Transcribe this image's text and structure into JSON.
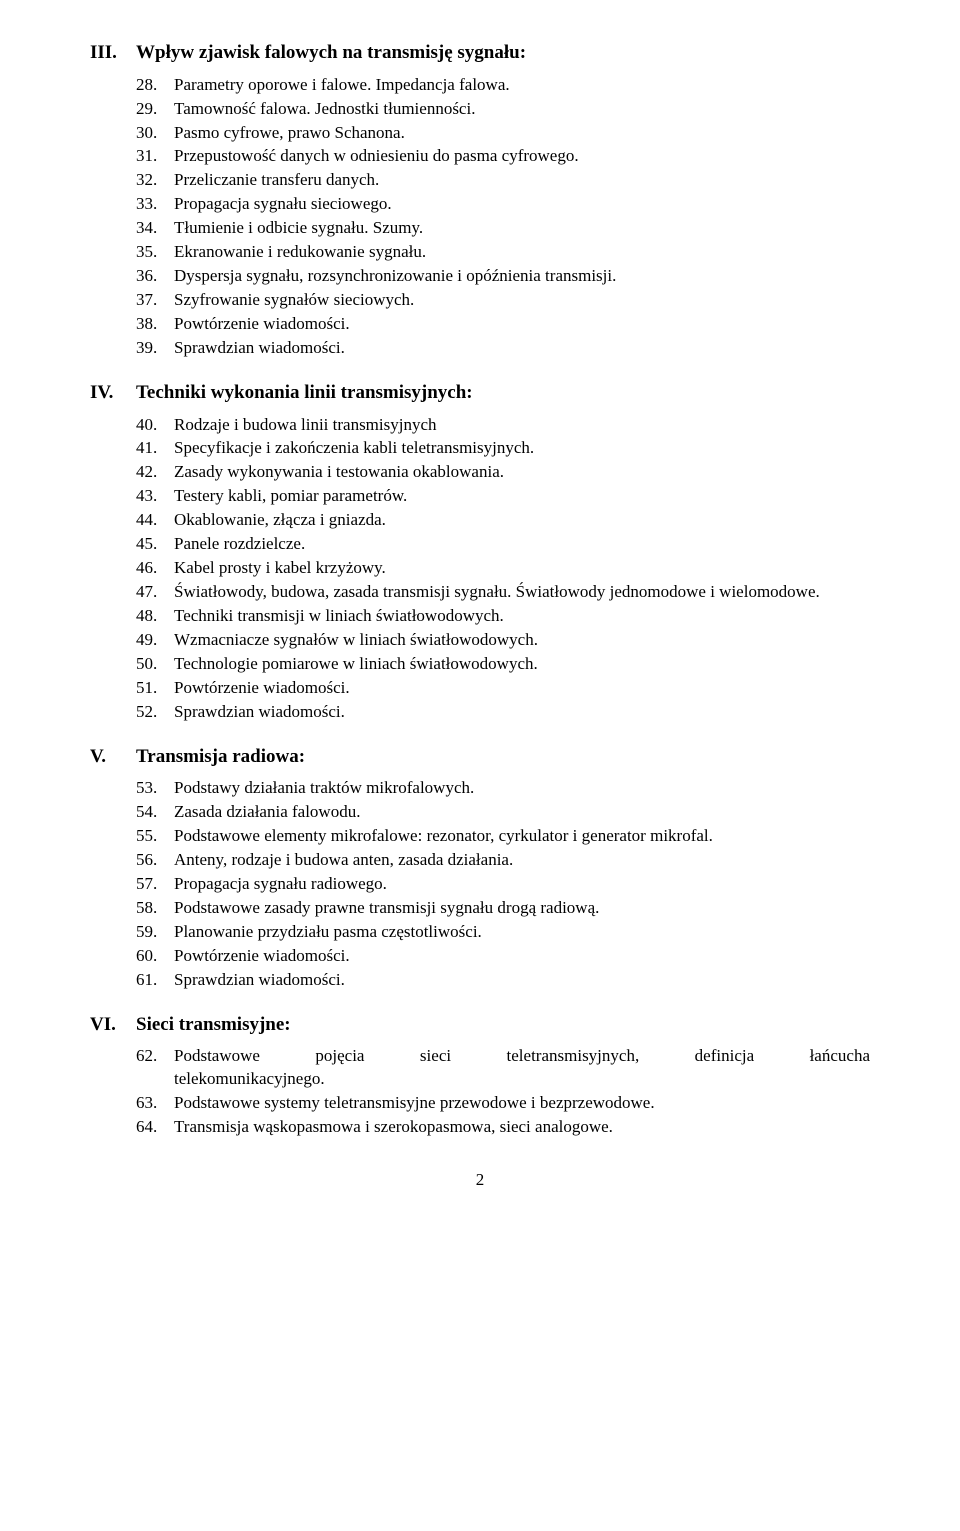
{
  "sections": [
    {
      "num": "III.",
      "title": "Wpływ zjawisk falowych na transmisję sygnału:",
      "items": [
        {
          "n": "28.",
          "t": "Parametry oporowe i falowe. Impedancja falowa."
        },
        {
          "n": "29.",
          "t": "Tamowność falowa. Jednostki tłumienności."
        },
        {
          "n": "30.",
          "t": "Pasmo cyfrowe, prawo Schanona."
        },
        {
          "n": "31.",
          "t": "Przepustowość danych w odniesieniu do pasma cyfrowego."
        },
        {
          "n": "32.",
          "t": "Przeliczanie transferu danych."
        },
        {
          "n": "33.",
          "t": "Propagacja sygnału sieciowego."
        },
        {
          "n": "34.",
          "t": "Tłumienie i odbicie sygnału. Szumy."
        },
        {
          "n": "35.",
          "t": "Ekranowanie i redukowanie sygnału."
        },
        {
          "n": "36.",
          "t": "Dyspersja sygnału, rozsynchronizowanie i opóźnienia transmisji."
        },
        {
          "n": "37.",
          "t": "Szyfrowanie sygnałów sieciowych."
        },
        {
          "n": "38.",
          "t": "Powtórzenie wiadomości."
        },
        {
          "n": "39.",
          "t": "Sprawdzian wiadomości."
        }
      ]
    },
    {
      "num": "IV.",
      "title": "Techniki wykonania linii transmisyjnych:",
      "items": [
        {
          "n": "40.",
          "t": "Rodzaje i budowa linii transmisyjnych"
        },
        {
          "n": "41.",
          "t": "Specyfikacje i zakończenia kabli teletransmisyjnych."
        },
        {
          "n": "42.",
          "t": "Zasady wykonywania i testowania okablowania."
        },
        {
          "n": "43.",
          "t": "Testery kabli, pomiar parametrów."
        },
        {
          "n": "44.",
          "t": "Okablowanie, złącza i gniazda."
        },
        {
          "n": "45.",
          "t": "Panele rozdzielcze."
        },
        {
          "n": "46.",
          "t": "Kabel prosty i kabel krzyżowy."
        },
        {
          "n": "47.",
          "t": "Światłowody, budowa, zasada transmisji sygnału. Światłowody jednomodowe i wielomodowe."
        },
        {
          "n": "48.",
          "t": "Techniki transmisji w liniach światłowodowych."
        },
        {
          "n": "49.",
          "t": "Wzmacniacze sygnałów w liniach światłowodowych."
        },
        {
          "n": "50.",
          "t": "Technologie pomiarowe w liniach światłowodowych."
        },
        {
          "n": "51.",
          "t": "Powtórzenie wiadomości."
        },
        {
          "n": "52.",
          "t": "Sprawdzian wiadomości."
        }
      ]
    },
    {
      "num": "V.",
      "title": "Transmisja radiowa:",
      "items": [
        {
          "n": "53.",
          "t": "Podstawy działania traktów mikrofalowych."
        },
        {
          "n": "54.",
          "t": "Zasada działania falowodu."
        },
        {
          "n": "55.",
          "t": "Podstawowe elementy mikrofalowe: rezonator, cyrkulator i generator mikrofal."
        },
        {
          "n": "56.",
          "t": "Anteny, rodzaje i budowa anten, zasada działania."
        },
        {
          "n": "57.",
          "t": "Propagacja sygnału radiowego."
        },
        {
          "n": "58.",
          "t": "Podstawowe zasady prawne transmisji sygnału drogą radiową."
        },
        {
          "n": "59.",
          "t": "Planowanie przydziału pasma częstotliwości."
        },
        {
          "n": "60.",
          "t": "Powtórzenie wiadomości."
        },
        {
          "n": "61.",
          "t": "Sprawdzian wiadomości."
        }
      ]
    },
    {
      "num": "VI.",
      "title": "Sieci transmisyjne:",
      "items": [
        {
          "n": "62.",
          "t": "Podstawowe pojęcia sieci teletransmisyjnych, definicja łańcucha telekomunikacyjnego.",
          "justified": true
        },
        {
          "n": "63.",
          "t": "Podstawowe systemy teletransmisyjne przewodowe i bezprzewodowe."
        },
        {
          "n": "64.",
          "t": "Transmisja wąskopasmowa i szerokopasmowa, sieci analogowe."
        }
      ]
    }
  ],
  "page_number": "2"
}
